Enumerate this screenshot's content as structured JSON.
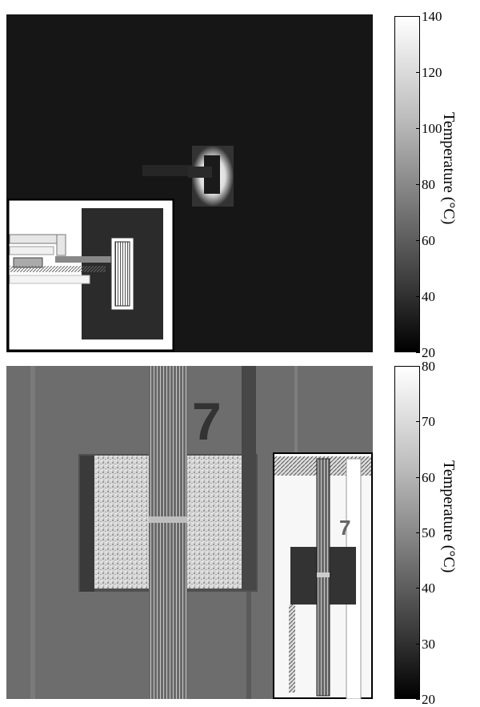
{
  "top_figure": {
    "colorbar_label": "Temperature (°C)",
    "ticks": [
      "140",
      "120",
      "100",
      "80",
      "60",
      "40",
      "20"
    ],
    "range": [
      20,
      140
    ]
  },
  "bottom_figure": {
    "colorbar_label": "Temperature (°C)",
    "ticks": [
      "80",
      "70",
      "60",
      "50",
      "40",
      "30",
      "20"
    ],
    "range": [
      20,
      80
    ],
    "marker_text": "7",
    "inset_marker_text": "7"
  }
}
